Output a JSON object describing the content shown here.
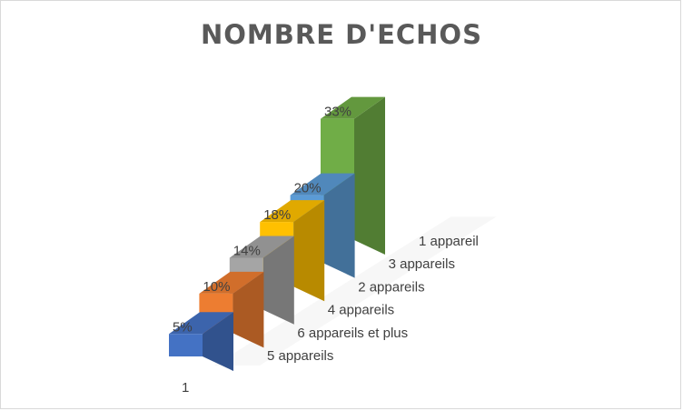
{
  "chart_data": {
    "type": "bar",
    "title": "NOMBRE D'ECHOS",
    "categories": [
      "1"
    ],
    "series": [
      {
        "name": "5 appareils",
        "values": [
          5
        ],
        "color": "#4472C4"
      },
      {
        "name": "6 appareils et plus",
        "values": [
          10
        ],
        "color": "#ED7D31"
      },
      {
        "name": "4 appareils",
        "values": [
          14
        ],
        "color": "#A5A5A5"
      },
      {
        "name": "2 appareils",
        "values": [
          18
        ],
        "color": "#FFC000"
      },
      {
        "name": "3 appareils",
        "values": [
          20
        ],
        "color": "#5B9BD5"
      },
      {
        "name": "1 appareil",
        "values": [
          33
        ],
        "color": "#70AD47"
      }
    ],
    "data_labels": [
      "5%",
      "10%",
      "14%",
      "18%",
      "20%",
      "33%"
    ],
    "value_suffix": "%",
    "xlabel": "",
    "ylabel": "",
    "grid": false,
    "legend": "none"
  }
}
